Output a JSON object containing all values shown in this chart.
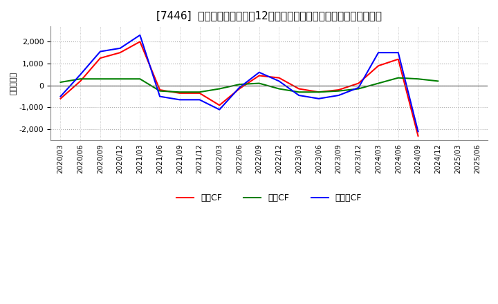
{
  "title": "[7446]  キャッシュフローの12か月移動合計の対前年同期増減額の推移",
  "ylabel": "（百万円）",
  "x_labels": [
    "2020/03",
    "2020/06",
    "2020/09",
    "2020/12",
    "2021/03",
    "2021/06",
    "2021/09",
    "2021/12",
    "2022/03",
    "2022/06",
    "2022/09",
    "2022/12",
    "2023/03",
    "2023/06",
    "2023/09",
    "2023/12",
    "2024/03",
    "2024/06",
    "2024/09",
    "2024/12",
    "2025/03",
    "2025/06"
  ],
  "eigyo_cf": [
    -600,
    200,
    1250,
    1500,
    2000,
    -200,
    -350,
    -350,
    -900,
    -150,
    450,
    350,
    -150,
    -300,
    -200,
    100,
    900,
    1200,
    -2300,
    null,
    null,
    null
  ],
  "toshi_cf": [
    150,
    300,
    300,
    300,
    300,
    -250,
    -300,
    -300,
    -150,
    50,
    100,
    -150,
    -300,
    -300,
    -250,
    -150,
    100,
    350,
    300,
    200,
    null,
    null
  ],
  "free_cf": [
    -500,
    500,
    1550,
    1700,
    2300,
    -500,
    -650,
    -650,
    -1100,
    -100,
    600,
    200,
    -450,
    -600,
    -450,
    -100,
    1500,
    1500,
    -2100,
    null,
    null,
    null
  ],
  "eigyo_color": "#FF0000",
  "toshi_color": "#008000",
  "free_color": "#0000FF",
  "ylim": [
    -2500,
    2700
  ],
  "yticks": [
    -2000,
    -1000,
    0,
    1000,
    2000
  ],
  "background_color": "#FFFFFF",
  "grid_color": "#AAAAAA",
  "title_fontsize": 11,
  "legend_fontsize": 9,
  "tick_fontsize": 7.5,
  "ylabel_fontsize": 8
}
